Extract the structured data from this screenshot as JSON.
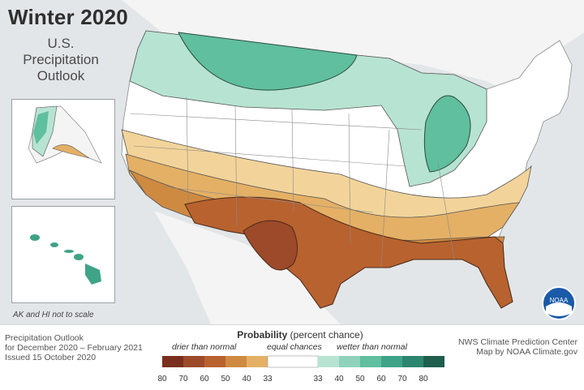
{
  "title": "Winter 2020",
  "subtitle_lines": [
    "U.S.",
    "Precipitation",
    "Outlook"
  ],
  "scale_note": "AK and HI not to scale",
  "footer": {
    "left_lines": [
      "Precipitation Outlook",
      "for December 2020 – February 2021",
      "Issued 15 October 2020"
    ],
    "right_lines": [
      "NWS Climate Prediction Center",
      "Map by NOAA Climate.gov"
    ],
    "probability_label": "Probability",
    "probability_unit": "(percent chance)",
    "drier_label": "drier than normal",
    "equal_label": "equal chances",
    "wetter_label": "wetter than normal",
    "dry_ticks": [
      "80",
      "70",
      "60",
      "50",
      "40",
      "33"
    ],
    "wet_ticks": [
      "33",
      "40",
      "50",
      "60",
      "70",
      "80"
    ]
  },
  "colors": {
    "dry": [
      "#7a2e1e",
      "#9c4a2a",
      "#b8622f",
      "#cf8a41",
      "#e4b065",
      "#f2d49a"
    ],
    "equal": "#ffffff",
    "wet": [
      "#b7e3d2",
      "#8ed2bb",
      "#5fbf9f",
      "#3fa387",
      "#2c866f",
      "#1f5e4d"
    ],
    "ocean": "#e3e6e8",
    "land_other": "#f3f3f3",
    "noaa_blue": "#1b5aa8"
  },
  "logo_text": "NOAA"
}
